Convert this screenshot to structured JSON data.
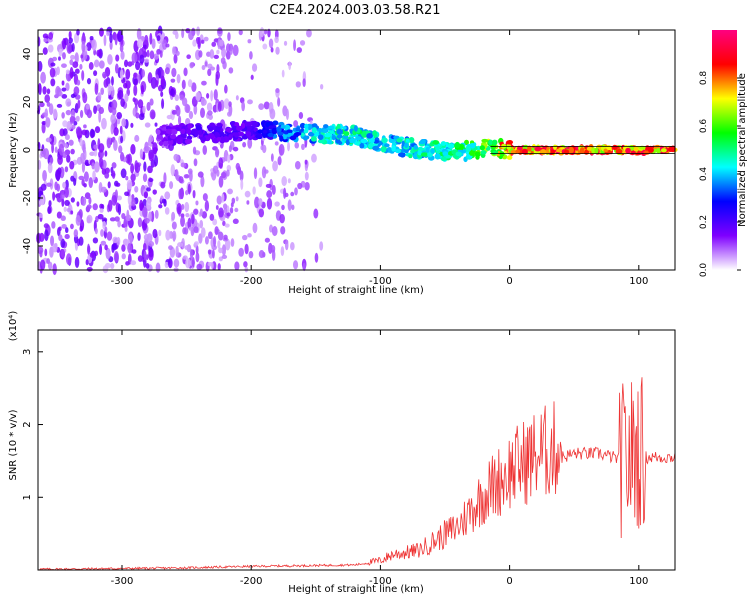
{
  "title": "C2E4.2024.003.03.58.R21",
  "colors": {
    "snr_line": "#ee3333",
    "background": "#ffffff",
    "axis": "#000000"
  },
  "chart_data": [
    {
      "type": "heatmap",
      "title": "C2E4.2024.003.03.58.R21",
      "xlabel": "Height of straight line (km)",
      "ylabel": "Frequency (Hz)",
      "xlim": [
        -365,
        128
      ],
      "ylim": [
        -50,
        50
      ],
      "x_ticks": [
        -300,
        -200,
        -100,
        0,
        100
      ],
      "x_tick_labels": [
        "-300",
        "-200",
        "-100",
        "0",
        "100"
      ],
      "y_ticks": [
        -40,
        -20,
        0,
        20,
        40
      ],
      "y_tick_labels": [
        "-40",
        "-20",
        "0",
        "20",
        "40"
      ],
      "colorbar": {
        "label": "Normalized spectral amplitude",
        "range": [
          0,
          1
        ],
        "ticks": [
          0.0,
          0.2,
          0.4,
          0.6,
          0.8
        ],
        "tick_labels": [
          "0.0",
          "0.2",
          "0.4",
          "0.6",
          "0.8"
        ],
        "colors": [
          "#ffffff",
          "#7f00ff",
          "#0000ff",
          "#00ffff",
          "#00ff00",
          "#ffff00",
          "#ff0000",
          "#ff0080"
        ]
      },
      "ridge": {
        "description_of_feature": "frequency ridge",
        "x": [
          -270,
          -240,
          -200,
          -180,
          -150,
          -120,
          -100,
          -80,
          -60,
          -40,
          -20,
          0,
          50,
          100,
          128
        ],
        "freq": [
          6,
          7,
          8,
          8,
          7,
          6,
          3,
          1,
          0,
          -1,
          1,
          0,
          0,
          0,
          0
        ],
        "amplitude": [
          0.15,
          0.2,
          0.2,
          0.35,
          0.45,
          0.5,
          0.45,
          0.45,
          0.5,
          0.55,
          0.6,
          0.9,
          0.9,
          0.85,
          0.9
        ]
      },
      "grid": false
    },
    {
      "type": "line",
      "xlabel": "Height of straight line (km)",
      "ylabel": "SNR (10 * v/v)",
      "y_multiplier": "(x10⁴)",
      "xlim": [
        -365,
        128
      ],
      "ylim": [
        0,
        3.3
      ],
      "x_ticks": [
        -300,
        -200,
        -100,
        0,
        100
      ],
      "x_tick_labels": [
        "-300",
        "-200",
        "-100",
        "0",
        "100"
      ],
      "y_ticks": [
        1,
        2,
        3
      ],
      "y_tick_labels": [
        "1",
        "2",
        "3"
      ],
      "series": [
        {
          "x": [
            -365,
            -300,
            -250,
            -200,
            -160,
            -120,
            -100,
            -90,
            -80,
            -70,
            -60,
            -50,
            -40,
            -30,
            -20,
            -10,
            0,
            10,
            20,
            30,
            40,
            50,
            60,
            70,
            80,
            90,
            95,
            100,
            105,
            110,
            120,
            128
          ],
          "y": [
            0.01,
            0.02,
            0.03,
            0.05,
            0.06,
            0.07,
            0.12,
            0.2,
            0.22,
            0.25,
            0.35,
            0.45,
            0.55,
            0.75,
            0.95,
            1.1,
            1.25,
            1.35,
            1.45,
            1.5,
            1.55,
            1.6,
            1.6,
            1.6,
            1.55,
            1.5,
            1.6,
            1.65,
            1.55,
            1.55,
            1.55,
            1.55
          ]
        }
      ],
      "grid": false
    }
  ]
}
